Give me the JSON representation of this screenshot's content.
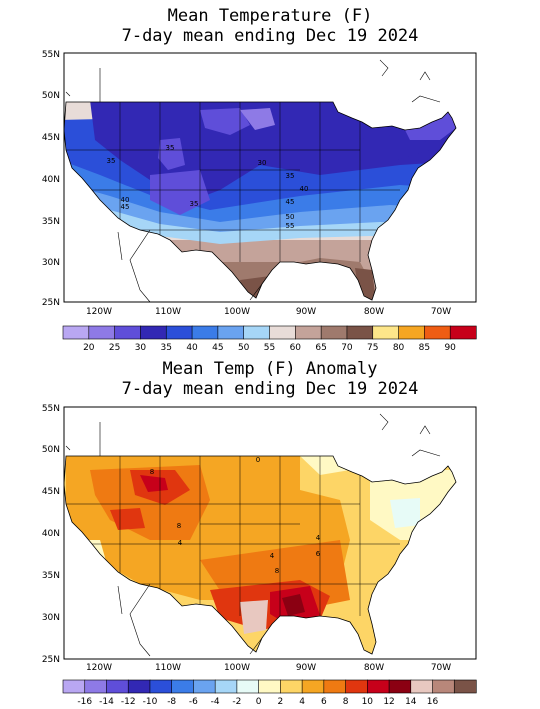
{
  "panels": [
    {
      "title_line1": "Mean Temperature (F)",
      "title_line2": "7-day mean ending Dec 19 2024",
      "lat_ticks": [
        "55N",
        "50N",
        "45N",
        "40N",
        "35N",
        "30N",
        "25N"
      ],
      "lon_ticks": [
        "120W",
        "110W",
        "100W",
        "90W",
        "80W",
        "70W"
      ],
      "contour_labels": [
        "35",
        "30",
        "35",
        "40",
        "45",
        "50",
        "55",
        "40",
        "45",
        "35",
        "35"
      ],
      "colorbar_labels": [
        "20",
        "25",
        "30",
        "35",
        "40",
        "45",
        "50",
        "55",
        "60",
        "65",
        "70",
        "75",
        "80",
        "85",
        "90"
      ],
      "colorbar_colors": [
        "#b9a7f2",
        "#8e7ae6",
        "#5f4ed9",
        "#3228b4",
        "#2b4fd9",
        "#3b7ce8",
        "#6aa3f0",
        "#a6d6f7",
        "#e8dcd8",
        "#c4a39a",
        "#9f7a6d",
        "#7a5347",
        "#fde68a",
        "#f5a623",
        "#ef5d13",
        "#c7001a"
      ]
    },
    {
      "title_line1": "Mean Temp (F) Anomaly",
      "title_line2": "7-day mean ending Dec 19 2024",
      "lat_ticks": [
        "55N",
        "50N",
        "45N",
        "40N",
        "35N",
        "30N",
        "25N"
      ],
      "lon_ticks": [
        "120W",
        "110W",
        "100W",
        "90W",
        "80W",
        "70W"
      ],
      "contour_labels": [
        "8",
        "8",
        "4",
        "4",
        "4",
        "6",
        "8",
        "0"
      ],
      "colorbar_labels": [
        "-16",
        "-14",
        "-12",
        "-10",
        "-8",
        "-6",
        "-4",
        "-2",
        "0",
        "2",
        "4",
        "6",
        "8",
        "10",
        "12",
        "14",
        "16"
      ],
      "colorbar_colors": [
        "#b9a7f2",
        "#8e7ae6",
        "#5f4ed9",
        "#3228b4",
        "#2b4fd9",
        "#3b7ce8",
        "#6aa3f0",
        "#a6d6f7",
        "#e7fbf7",
        "#fff9c4",
        "#fdd566",
        "#f5a623",
        "#ef7a12",
        "#e0360f",
        "#c7001a",
        "#8b0012",
        "#e8c8c0",
        "#b8877a",
        "#7a5347"
      ]
    }
  ]
}
